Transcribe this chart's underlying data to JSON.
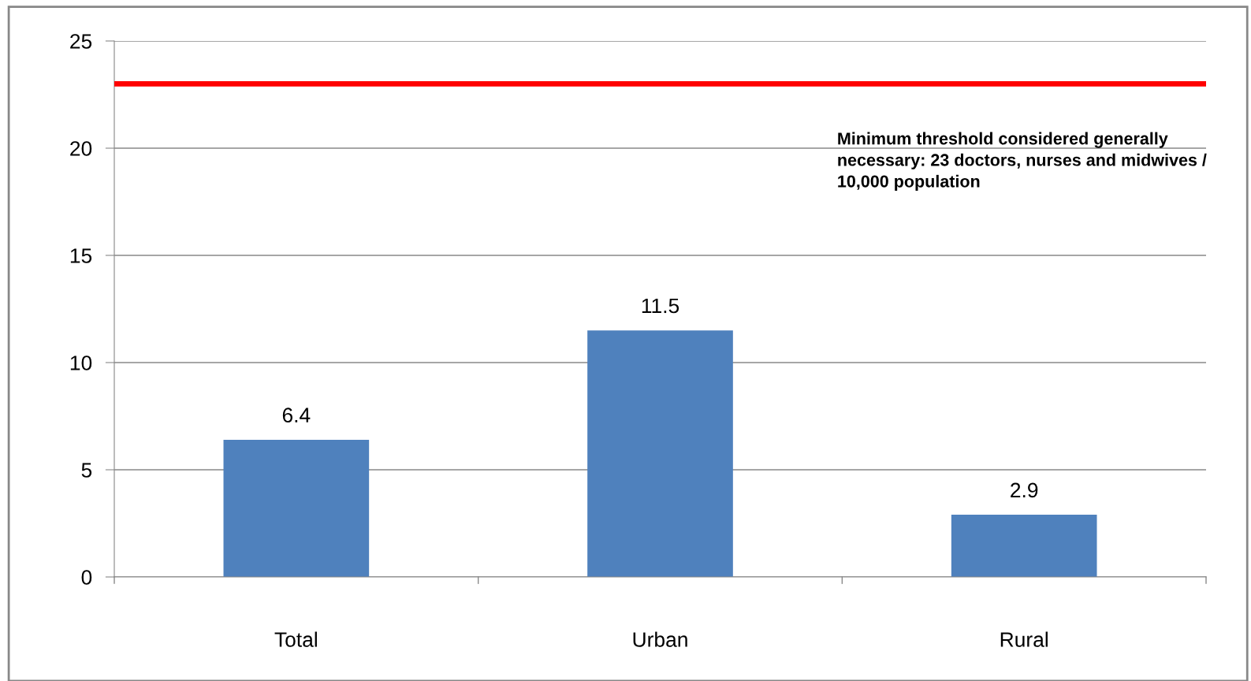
{
  "chart_data": {
    "type": "bar",
    "categories": [
      "Total",
      "Urban",
      "Rural"
    ],
    "values": [
      6.4,
      11.5,
      2.9
    ],
    "color": "#4f81bd",
    "ylim": [
      0,
      25
    ],
    "yticks": [
      0,
      5,
      10,
      15,
      20,
      25
    ],
    "grid": "y",
    "data_labels": true,
    "ref_lines": [
      {
        "axis": "y",
        "value": 23,
        "color": "#ff0000",
        "line_style": "solid",
        "label": "Minimum threshold considered generally necessary: 23 doctors, nurses and midwives / 10,000 population"
      }
    ]
  }
}
